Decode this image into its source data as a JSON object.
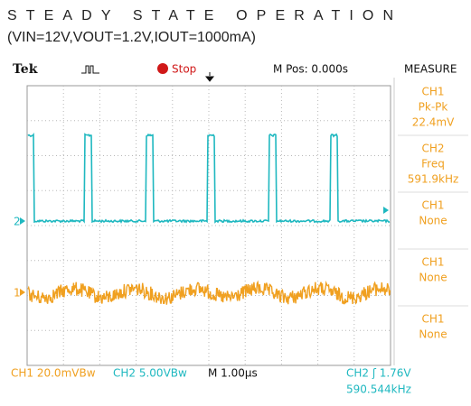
{
  "caption": {
    "line1": "STEADY STATE OPERATION",
    "line2": "(VIN=12V,VOUT=1.2V,IOUT=1000mA)"
  },
  "status_bar": {
    "brand": "Tek",
    "state": "Stop",
    "position": "M Pos: 0.000s",
    "menu": "MEASURE"
  },
  "measurements": [
    {
      "source": "CH1",
      "kind": "Pk-Pk",
      "reading": "22.4mV"
    },
    {
      "source": "CH2",
      "kind": "Freq",
      "reading": "591.9kHz"
    },
    {
      "source": "CH1",
      "kind": "None"
    },
    {
      "source": "CH1",
      "kind": "None"
    },
    {
      "source": "CH1",
      "kind": "None"
    }
  ],
  "markers": {
    "ch1": "1",
    "ch2": "2"
  },
  "footer": {
    "ch1_scale": "CH1  20.0mVBw",
    "ch2_scale": "CH2  5.00VBw",
    "timebase": "M 1.00µs",
    "trigger": "CH2 ʃ 1.76V",
    "frequency": "590.544kHz"
  }
}
